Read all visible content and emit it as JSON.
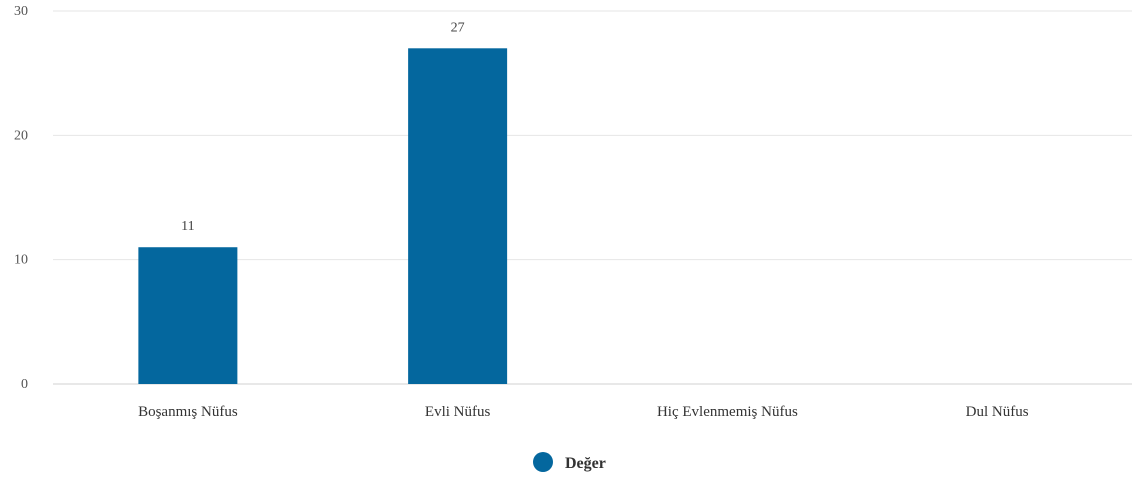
{
  "chart_data": {
    "type": "bar",
    "categories": [
      "Boşanmış Nüfus",
      "Evli Nüfus",
      "Hiç Evlenmemiş Nüfus",
      "Dul Nüfus"
    ],
    "series": [
      {
        "name": "Değer",
        "values": [
          11,
          27,
          null,
          null
        ],
        "data_labels": [
          "11",
          "27",
          "",
          ""
        ]
      }
    ],
    "ylim": [
      0,
      30
    ],
    "yticks": [
      0,
      10,
      20,
      30
    ],
    "title": "",
    "xlabel": "",
    "ylabel": "",
    "grid": true,
    "legend_position": "bottom",
    "colors": {
      "bar": "#04679e",
      "grid": "#e6e6e6",
      "axis": "#d0d0d0"
    }
  }
}
